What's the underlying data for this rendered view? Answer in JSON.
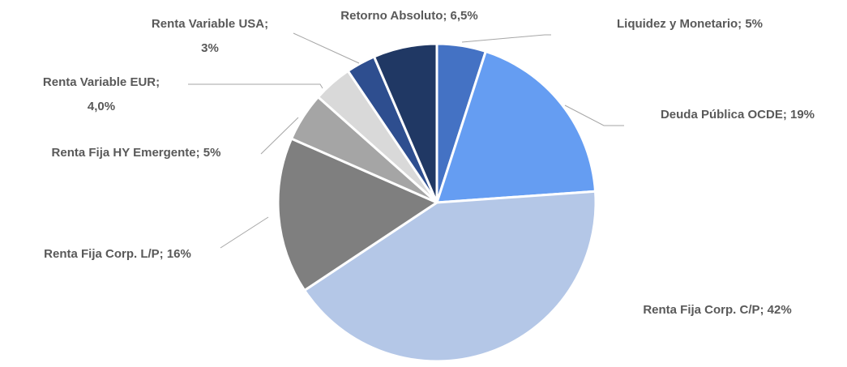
{
  "chart_data": {
    "type": "pie",
    "values": [
      5,
      19,
      42,
      16,
      5,
      4.0,
      3,
      6.5
    ],
    "value_labels": [
      [
        "Liquidez y Monetario; 5%"
      ],
      [
        "Deuda Pública OCDE; 19%"
      ],
      [
        "Renta Fija Corp. C/P; 42%"
      ],
      [
        "Renta Fija Corp. L/P; 16%"
      ],
      [
        "Renta Fija HY Emergente; 5%"
      ],
      [
        "Renta Variable EUR;",
        "4,0%"
      ],
      [
        "Renta Variable USA;",
        "3%"
      ],
      [
        "Retorno Absoluto; 6,5%"
      ]
    ],
    "colors": [
      "#4472c4",
      "#659df2",
      "#b4c7e7",
      "#7f7f7f",
      "#a5a5a5",
      "#d9d9d9",
      "#2e4e8f",
      "#203864"
    ]
  }
}
